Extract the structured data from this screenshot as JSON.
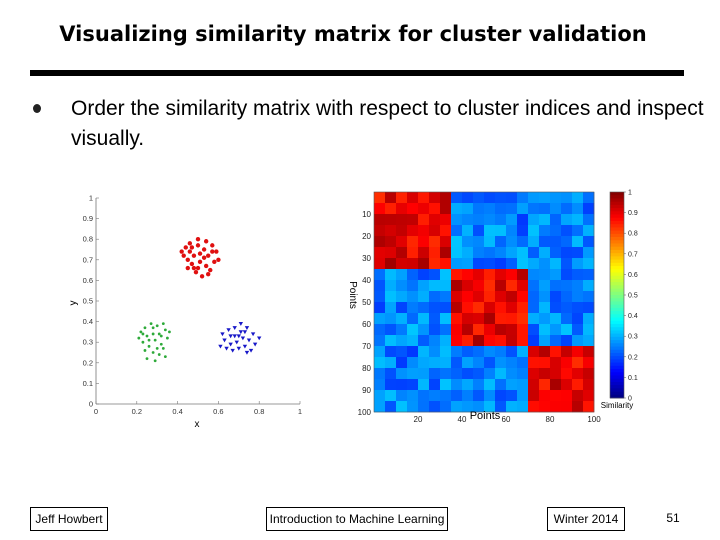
{
  "slide": {
    "title": "Visualizing similarity matrix for cluster validation",
    "bullet": "Order the similarity matrix with respect to cluster indices and inspect visually."
  },
  "footer": {
    "author": "Jeff Howbert",
    "course": "Introduction to Machine Learning",
    "term": "Winter 2014",
    "page": "51"
  },
  "chart_data": [
    {
      "type": "scatter",
      "xlabel": "x",
      "ylabel": "y",
      "xlim": [
        0,
        1
      ],
      "ylim": [
        0,
        1
      ],
      "xticks": [
        "0",
        "0.2",
        "0.4",
        "0.6",
        "0.8",
        "1"
      ],
      "yticks": [
        "0",
        "0.1",
        "0.2",
        "0.3",
        "0.4",
        "0.5",
        "0.6",
        "0.7",
        "0.8",
        "0.9",
        "1"
      ],
      "series": [
        {
          "color": "#e01010",
          "marker": "dot",
          "points": [
            [
              0.44,
              0.76
            ],
            [
              0.46,
              0.74
            ],
            [
              0.48,
              0.72
            ],
            [
              0.5,
              0.77
            ],
            [
              0.53,
              0.75
            ],
            [
              0.55,
              0.72
            ],
            [
              0.57,
              0.74
            ],
            [
              0.45,
              0.7
            ],
            [
              0.47,
              0.68
            ],
            [
              0.51,
              0.69
            ],
            [
              0.54,
              0.67
            ],
            [
              0.58,
              0.69
            ],
            [
              0.43,
              0.72
            ],
            [
              0.49,
              0.64
            ],
            [
              0.52,
              0.62
            ],
            [
              0.56,
              0.65
            ],
            [
              0.6,
              0.7
            ],
            [
              0.46,
              0.78
            ],
            [
              0.5,
              0.8
            ],
            [
              0.54,
              0.79
            ],
            [
              0.42,
              0.74
            ],
            [
              0.48,
              0.66
            ],
            [
              0.55,
              0.63
            ],
            [
              0.59,
              0.74
            ],
            [
              0.51,
              0.73
            ],
            [
              0.47,
              0.76
            ],
            [
              0.53,
              0.71
            ],
            [
              0.45,
              0.66
            ],
            [
              0.57,
              0.77
            ],
            [
              0.5,
              0.66
            ]
          ]
        },
        {
          "color": "#2eaa3a",
          "marker": "dot",
          "points": [
            [
              0.22,
              0.35
            ],
            [
              0.25,
              0.33
            ],
            [
              0.28,
              0.37
            ],
            [
              0.31,
              0.34
            ],
            [
              0.34,
              0.36
            ],
            [
              0.23,
              0.3
            ],
            [
              0.26,
              0.28
            ],
            [
              0.29,
              0.31
            ],
            [
              0.32,
              0.29
            ],
            [
              0.35,
              0.32
            ],
            [
              0.24,
              0.26
            ],
            [
              0.28,
              0.25
            ],
            [
              0.31,
              0.24
            ],
            [
              0.33,
              0.27
            ],
            [
              0.21,
              0.32
            ],
            [
              0.27,
              0.39
            ],
            [
              0.3,
              0.38
            ],
            [
              0.33,
              0.39
            ],
            [
              0.25,
              0.22
            ],
            [
              0.29,
              0.21
            ],
            [
              0.36,
              0.35
            ],
            [
              0.23,
              0.34
            ],
            [
              0.3,
              0.27
            ],
            [
              0.26,
              0.31
            ],
            [
              0.34,
              0.23
            ],
            [
              0.28,
              0.34
            ],
            [
              0.32,
              0.33
            ],
            [
              0.24,
              0.37
            ]
          ]
        },
        {
          "color": "#1818c8",
          "marker": "triangle",
          "points": [
            [
              0.62,
              0.34
            ],
            [
              0.65,
              0.36
            ],
            [
              0.68,
              0.33
            ],
            [
              0.71,
              0.35
            ],
            [
              0.74,
              0.37
            ],
            [
              0.77,
              0.34
            ],
            [
              0.63,
              0.31
            ],
            [
              0.66,
              0.29
            ],
            [
              0.69,
              0.3
            ],
            [
              0.72,
              0.32
            ],
            [
              0.75,
              0.31
            ],
            [
              0.78,
              0.29
            ],
            [
              0.64,
              0.27
            ],
            [
              0.67,
              0.26
            ],
            [
              0.7,
              0.27
            ],
            [
              0.73,
              0.28
            ],
            [
              0.76,
              0.26
            ],
            [
              0.68,
              0.37
            ],
            [
              0.71,
              0.39
            ],
            [
              0.74,
              0.25
            ],
            [
              0.8,
              0.32
            ],
            [
              0.61,
              0.28
            ],
            [
              0.7,
              0.33
            ],
            [
              0.66,
              0.33
            ],
            [
              0.73,
              0.35
            ]
          ]
        }
      ]
    },
    {
      "type": "heatmap",
      "xlabel": "Points",
      "ylabel": "Points",
      "x_ticks": [
        "20",
        "40",
        "60",
        "80",
        "100"
      ],
      "y_ticks": [
        "10",
        "20",
        "30",
        "40",
        "50",
        "60",
        "70",
        "80",
        "90",
        "100"
      ],
      "colorbar_label": "Similarity",
      "colorbar_ticks": [
        "0",
        "0.1",
        "0.2",
        "0.3",
        "0.4",
        "0.5",
        "0.6",
        "0.7",
        "0.8",
        "0.9",
        "1"
      ],
      "n_points": 100,
      "blocks": [
        [
          1,
          35
        ],
        [
          36,
          70
        ],
        [
          71,
          100
        ]
      ],
      "within_similarity": 0.9,
      "between_similarity": 0.25,
      "colormap": "jet"
    }
  ]
}
